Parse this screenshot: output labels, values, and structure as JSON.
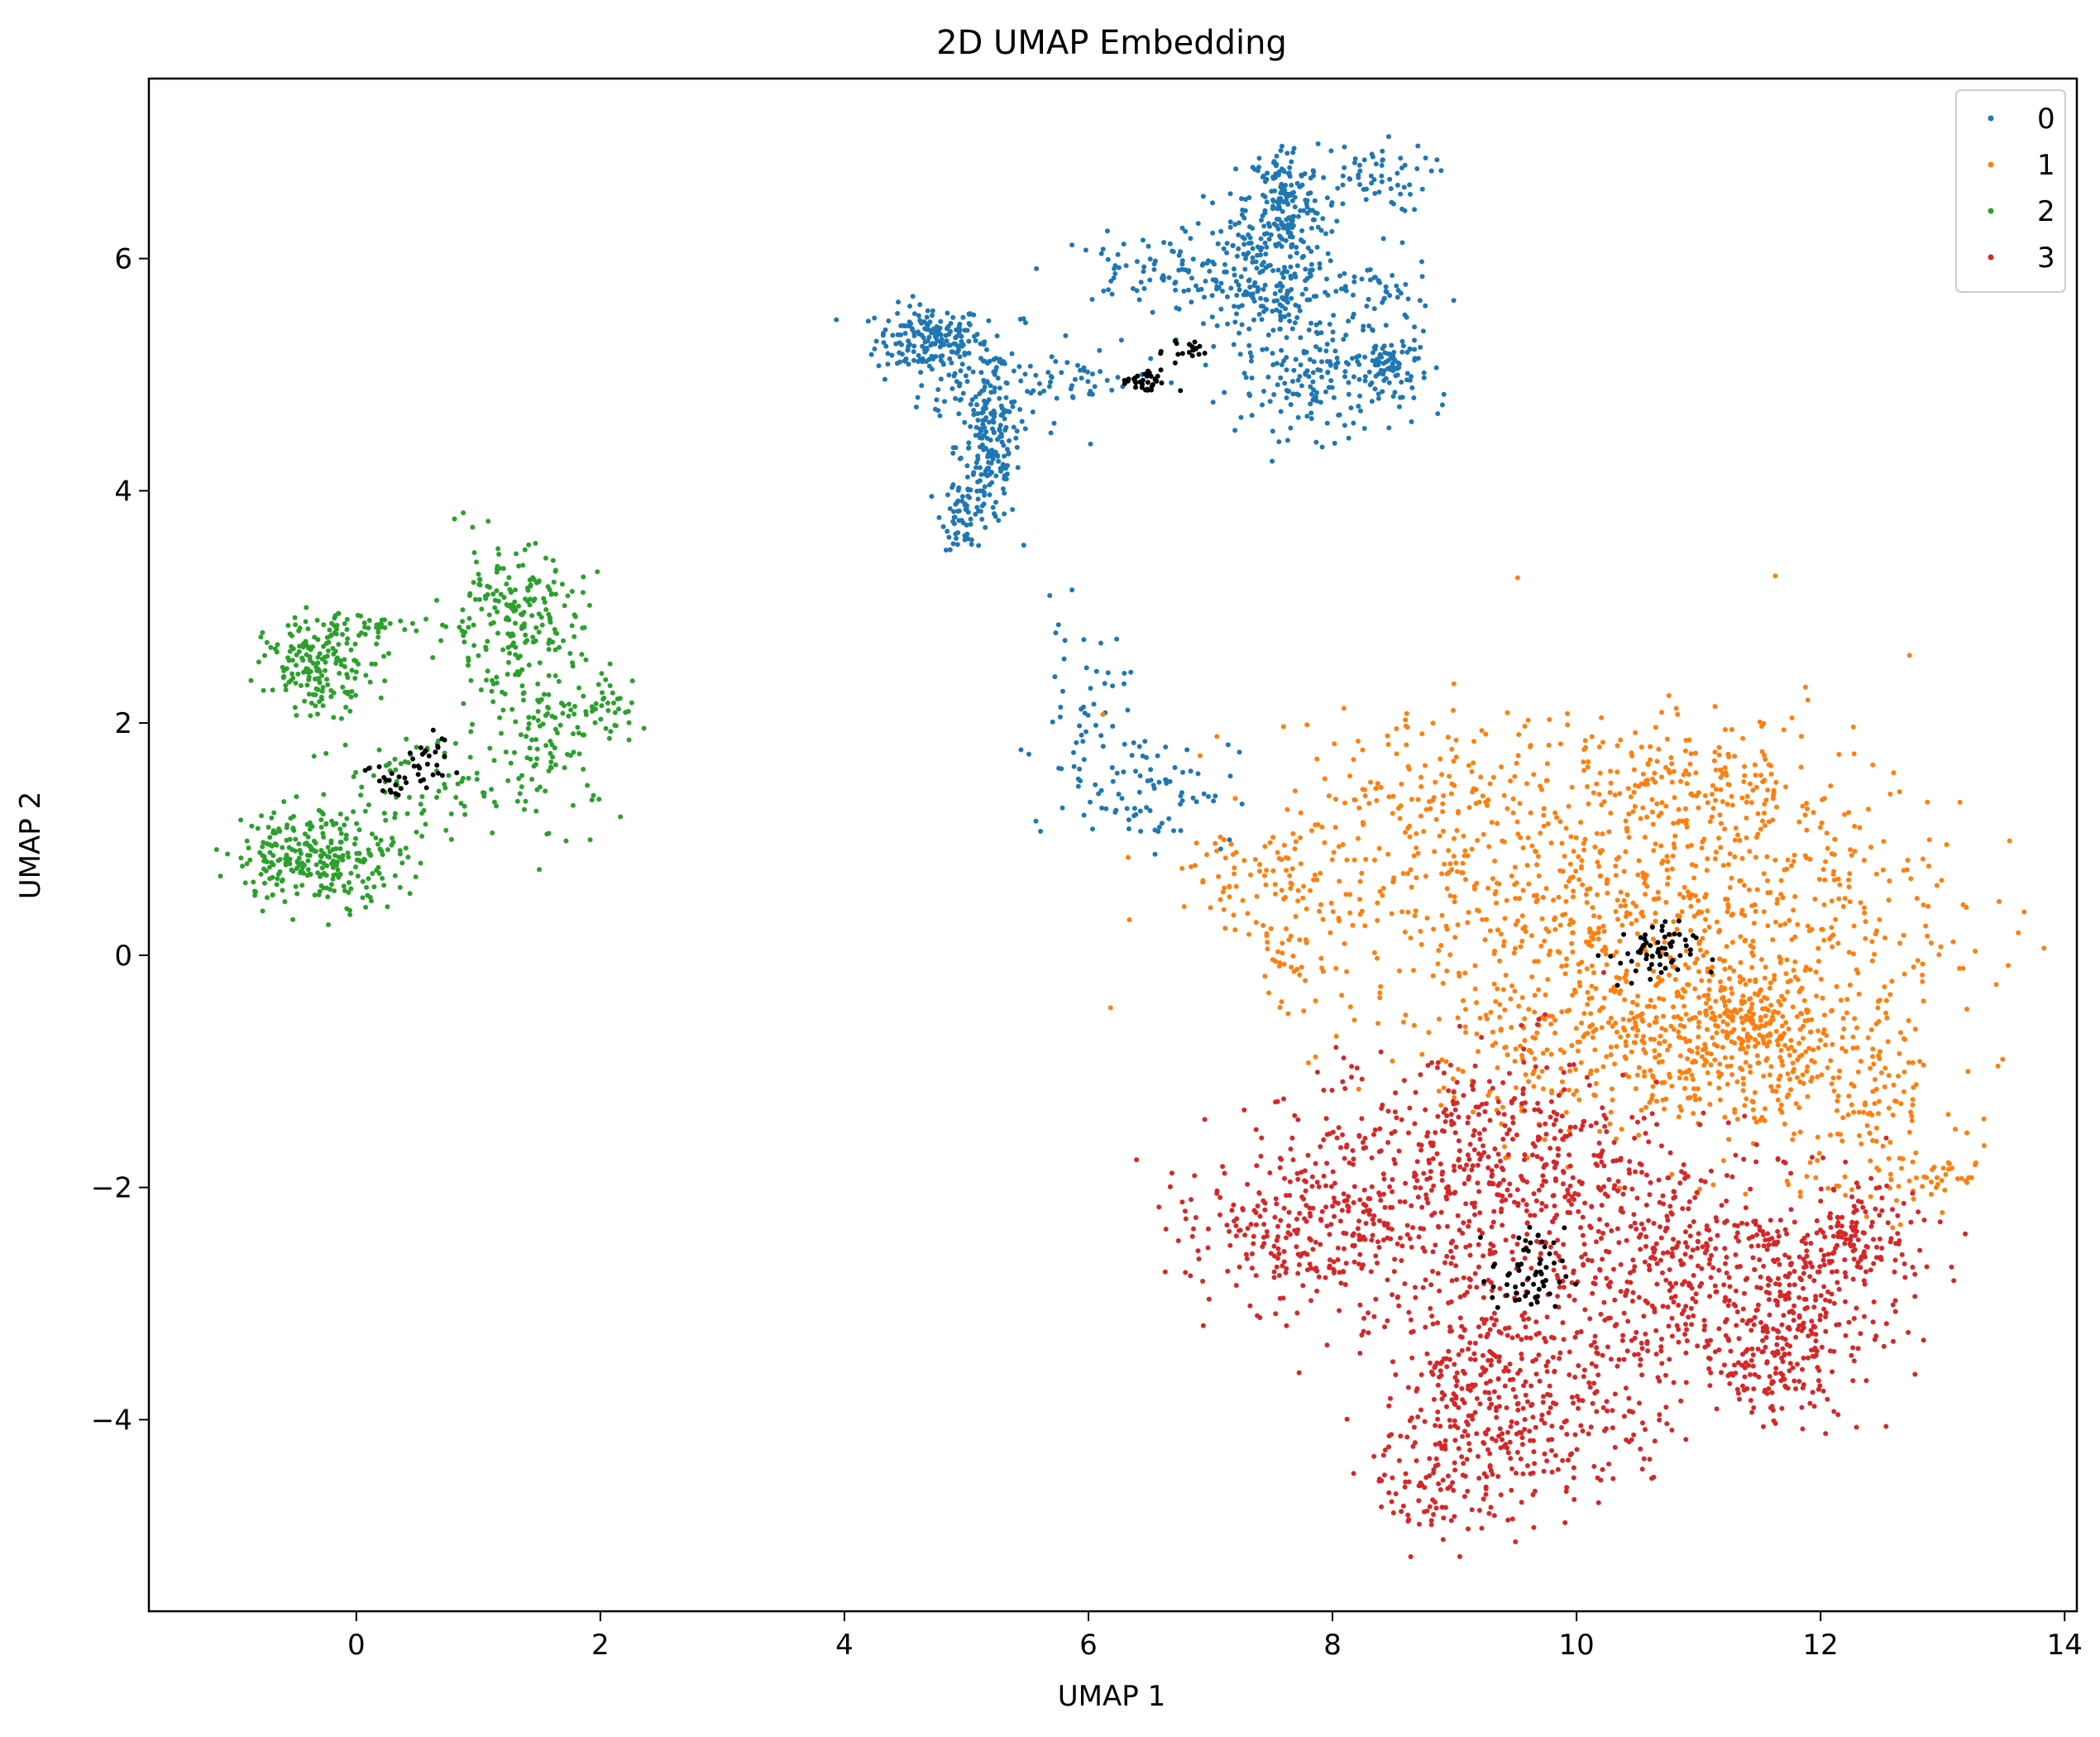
{
  "chart_data": {
    "type": "scatter",
    "title": "2D UMAP Embedding",
    "xlabel": "UMAP 1",
    "ylabel": "UMAP 2",
    "xlim": [
      -1.7,
      14.1
    ],
    "ylim": [
      -5.65,
      7.55
    ],
    "xticks": [
      0,
      2,
      4,
      6,
      8,
      10,
      12,
      14
    ],
    "yticks": [
      -4,
      -2,
      0,
      2,
      4,
      6
    ],
    "grid": false,
    "legend_position": "top-right",
    "series": [
      {
        "name": "0",
        "color": "#1f77b4",
        "clusters": [
          {
            "cx": 4.7,
            "cy": 5.3,
            "sx": 0.22,
            "sy": 0.15,
            "n": 180
          },
          {
            "cx": 5.2,
            "cy": 4.9,
            "sx": 0.3,
            "sy": 0.25,
            "n": 120
          },
          {
            "cx": 5.2,
            "cy": 4.3,
            "sx": 0.12,
            "sy": 0.3,
            "n": 150
          },
          {
            "cx": 5.0,
            "cy": 3.8,
            "sx": 0.1,
            "sy": 0.15,
            "n": 60
          },
          {
            "cx": 6.5,
            "cy": 5.9,
            "sx": 0.4,
            "sy": 0.15,
            "n": 70
          },
          {
            "cx": 7.6,
            "cy": 6.5,
            "sx": 0.15,
            "sy": 0.25,
            "n": 160
          },
          {
            "cx": 8.3,
            "cy": 6.7,
            "sx": 0.25,
            "sy": 0.15,
            "n": 60
          },
          {
            "cx": 7.5,
            "cy": 5.75,
            "sx": 0.35,
            "sy": 0.35,
            "n": 280
          },
          {
            "cx": 7.95,
            "cy": 4.9,
            "sx": 0.35,
            "sy": 0.22,
            "n": 140
          },
          {
            "cx": 8.5,
            "cy": 5.1,
            "sx": 0.15,
            "sy": 0.12,
            "n": 70
          },
          {
            "cx": 8.4,
            "cy": 5.7,
            "sx": 0.2,
            "sy": 0.15,
            "n": 40
          },
          {
            "cx": 6.0,
            "cy": 4.95,
            "sx": 0.3,
            "sy": 0.1,
            "n": 30
          },
          {
            "cx": 5.95,
            "cy": 2.1,
            "sx": 0.18,
            "sy": 0.4,
            "n": 50
          },
          {
            "cx": 6.5,
            "cy": 1.45,
            "sx": 0.35,
            "sy": 0.25,
            "n": 80
          }
        ]
      },
      {
        "name": "1",
        "color": "#ff7f0e",
        "clusters": [
          {
            "cx": 9.5,
            "cy": 0.6,
            "sx": 1.0,
            "sy": 0.7,
            "n": 450
          },
          {
            "cx": 11.3,
            "cy": 0.4,
            "sx": 0.9,
            "sy": 0.8,
            "n": 550
          },
          {
            "cx": 10.5,
            "cy": -0.8,
            "sx": 0.8,
            "sy": 0.4,
            "n": 400
          },
          {
            "cx": 12.3,
            "cy": -1.2,
            "sx": 0.4,
            "sy": 0.5,
            "n": 150
          },
          {
            "cx": 8.6,
            "cy": 1.4,
            "sx": 0.5,
            "sy": 0.3,
            "n": 90
          },
          {
            "cx": 7.3,
            "cy": 0.7,
            "sx": 0.4,
            "sy": 0.2,
            "n": 60
          },
          {
            "cx": 7.7,
            "cy": 0.1,
            "sx": 0.25,
            "sy": 0.3,
            "n": 50
          },
          {
            "cx": 11.0,
            "cy": 1.5,
            "sx": 0.5,
            "sy": 0.2,
            "n": 100
          },
          {
            "cx": 12.8,
            "cy": -1.9,
            "sx": 0.35,
            "sy": 0.15,
            "n": 40
          },
          {
            "cx": 11.4,
            "cy": -0.7,
            "sx": 0.25,
            "sy": 0.3,
            "n": 150
          }
        ]
      },
      {
        "name": "2",
        "color": "#2ca02c",
        "clusters": [
          {
            "cx": -0.3,
            "cy": 2.5,
            "sx": 0.22,
            "sy": 0.2,
            "n": 180
          },
          {
            "cx": -0.3,
            "cy": 0.85,
            "sx": 0.35,
            "sy": 0.2,
            "n": 280
          },
          {
            "cx": 1.25,
            "cy": 2.9,
            "sx": 0.3,
            "sy": 0.3,
            "n": 200
          },
          {
            "cx": 1.6,
            "cy": 1.9,
            "sx": 0.3,
            "sy": 0.35,
            "n": 120
          },
          {
            "cx": 0.6,
            "cy": 1.5,
            "sx": 0.5,
            "sy": 0.25,
            "n": 80
          },
          {
            "cx": 2.0,
            "cy": 2.15,
            "sx": 0.2,
            "sy": 0.12,
            "n": 30
          },
          {
            "cx": 0.15,
            "cy": 2.85,
            "sx": 0.2,
            "sy": 0.05,
            "n": 30
          }
        ]
      },
      {
        "name": "3",
        "color": "#d62728",
        "clusters": [
          {
            "cx": 8.2,
            "cy": -2.2,
            "sx": 0.6,
            "sy": 0.5,
            "n": 350
          },
          {
            "cx": 9.5,
            "cy": -1.8,
            "sx": 0.6,
            "sy": 0.5,
            "n": 350
          },
          {
            "cx": 10.5,
            "cy": -2.6,
            "sx": 0.6,
            "sy": 0.5,
            "n": 350
          },
          {
            "cx": 11.8,
            "cy": -2.8,
            "sx": 0.5,
            "sy": 0.45,
            "n": 300
          },
          {
            "cx": 11.6,
            "cy": -3.5,
            "sx": 0.3,
            "sy": 0.25,
            "n": 150
          },
          {
            "cx": 9.1,
            "cy": -3.8,
            "sx": 0.35,
            "sy": 0.5,
            "n": 250
          },
          {
            "cx": 9.9,
            "cy": -3.9,
            "sx": 0.45,
            "sy": 0.45,
            "n": 200
          },
          {
            "cx": 8.8,
            "cy": -4.6,
            "sx": 0.25,
            "sy": 0.2,
            "n": 60
          },
          {
            "cx": 12.3,
            "cy": -2.4,
            "sx": 0.2,
            "sy": 0.2,
            "n": 80
          },
          {
            "cx": 7.5,
            "cy": -2.5,
            "sx": 0.4,
            "sy": 0.25,
            "n": 80
          }
        ]
      },
      {
        "color": "#000000",
        "clusters": [
          {
            "cx": 6.45,
            "cy": 4.93,
            "sx": 0.1,
            "sy": 0.05,
            "n": 35
          },
          {
            "cx": 6.8,
            "cy": 5.22,
            "sx": 0.1,
            "sy": 0.06,
            "n": 18
          },
          {
            "cx": 0.35,
            "cy": 1.5,
            "sx": 0.15,
            "sy": 0.1,
            "n": 25
          },
          {
            "cx": 0.65,
            "cy": 1.7,
            "sx": 0.08,
            "sy": 0.12,
            "n": 20
          },
          {
            "cx": 10.6,
            "cy": 0.0,
            "sx": 0.18,
            "sy": 0.14,
            "n": 60
          },
          {
            "cx": 9.6,
            "cy": -2.75,
            "sx": 0.15,
            "sy": 0.2,
            "n": 60
          }
        ]
      }
    ]
  }
}
